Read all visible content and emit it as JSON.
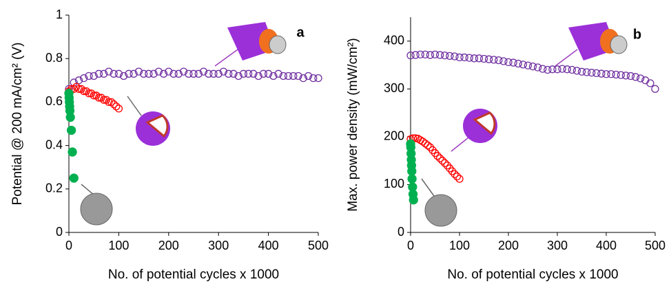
{
  "chart_data": [
    {
      "type": "scatter",
      "title": "a",
      "x_label": "No. of potential cycles x 1000",
      "y_label": "Potential @ 200 mA/cm² (V)",
      "xlim": [
        0,
        500
      ],
      "xticks": [
        0,
        100,
        200,
        300,
        400,
        500
      ],
      "ylim": [
        0,
        1
      ],
      "yticks": [
        0,
        0.2,
        0.4,
        0.6,
        0.8,
        1
      ],
      "series": [
        {
          "color": "#7030a0",
          "marker": "open",
          "x": [
            0,
            10,
            20,
            30,
            40,
            50,
            60,
            70,
            80,
            90,
            100,
            110,
            120,
            130,
            140,
            150,
            160,
            170,
            180,
            190,
            200,
            210,
            220,
            230,
            240,
            250,
            260,
            270,
            280,
            290,
            300,
            310,
            320,
            330,
            340,
            350,
            360,
            370,
            380,
            390,
            400,
            410,
            420,
            430,
            440,
            450,
            460,
            470,
            480,
            490,
            500
          ],
          "values": [
            0.66,
            0.69,
            0.7,
            0.71,
            0.72,
            0.72,
            0.73,
            0.73,
            0.74,
            0.73,
            0.73,
            0.72,
            0.73,
            0.73,
            0.74,
            0.73,
            0.73,
            0.73,
            0.74,
            0.73,
            0.74,
            0.73,
            0.73,
            0.74,
            0.73,
            0.73,
            0.73,
            0.74,
            0.73,
            0.73,
            0.73,
            0.74,
            0.73,
            0.73,
            0.72,
            0.73,
            0.73,
            0.73,
            0.72,
            0.73,
            0.73,
            0.72,
            0.73,
            0.72,
            0.72,
            0.72,
            0.72,
            0.71,
            0.72,
            0.71,
            0.71
          ]
        },
        {
          "color": "#ff0000",
          "marker": "open",
          "x": [
            0,
            5,
            10,
            15,
            20,
            25,
            30,
            35,
            40,
            45,
            50,
            55,
            60,
            65,
            70,
            75,
            80,
            85,
            90,
            95,
            100
          ],
          "values": [
            0.65,
            0.66,
            0.66,
            0.67,
            0.66,
            0.66,
            0.65,
            0.65,
            0.64,
            0.64,
            0.63,
            0.63,
            0.62,
            0.62,
            0.61,
            0.61,
            0.6,
            0.6,
            0.59,
            0.58,
            0.57
          ]
        },
        {
          "color": "#00b050",
          "marker": "filled",
          "x": [
            0,
            0.5,
            1,
            1.5,
            2,
            3,
            5,
            7,
            10
          ],
          "values": [
            0.64,
            0.62,
            0.6,
            0.58,
            0.56,
            0.53,
            0.47,
            0.37,
            0.25
          ]
        }
      ]
    },
    {
      "type": "scatter",
      "title": "b",
      "x_label": "No. of potential cycles x 1000",
      "y_label": "Max. power density (mW/cm²)",
      "xlim": [
        0,
        500
      ],
      "xticks": [
        0,
        100,
        200,
        300,
        400,
        500
      ],
      "ylim": [
        0,
        450
      ],
      "yticks": [
        0,
        100,
        200,
        300,
        400
      ],
      "series": [
        {
          "color": "#7030a0",
          "marker": "open",
          "x": [
            0,
            10,
            20,
            30,
            40,
            50,
            60,
            70,
            80,
            90,
            100,
            110,
            120,
            130,
            140,
            150,
            160,
            170,
            180,
            190,
            200,
            210,
            220,
            230,
            240,
            250,
            260,
            270,
            280,
            290,
            300,
            310,
            320,
            330,
            340,
            350,
            360,
            370,
            380,
            390,
            400,
            410,
            420,
            430,
            440,
            450,
            460,
            470,
            480,
            490,
            500
          ],
          "values": [
            370,
            371,
            372,
            372,
            371,
            372,
            371,
            370,
            369,
            368,
            366,
            366,
            365,
            364,
            364,
            363,
            362,
            361,
            360,
            358,
            356,
            355,
            353,
            351,
            349,
            347,
            345,
            342,
            340,
            341,
            341,
            342,
            341,
            340,
            338,
            336,
            335,
            334,
            333,
            332,
            331,
            331,
            330,
            329,
            328,
            327,
            325,
            322,
            318,
            312,
            300
          ]
        },
        {
          "color": "#ff0000",
          "marker": "open",
          "x": [
            0,
            5,
            10,
            15,
            20,
            25,
            30,
            35,
            40,
            45,
            50,
            55,
            60,
            65,
            70,
            75,
            80,
            85,
            90,
            95,
            100
          ],
          "values": [
            195,
            197,
            197,
            196,
            193,
            190,
            186,
            182,
            178,
            172,
            166,
            160,
            155,
            150,
            145,
            140,
            134,
            128,
            122,
            117,
            112
          ]
        },
        {
          "color": "#00b050",
          "marker": "filled",
          "x": [
            0,
            0.5,
            1,
            1.5,
            2,
            2.5,
            3,
            4,
            5,
            6
          ],
          "values": [
            185,
            178,
            165,
            152,
            140,
            128,
            112,
            95,
            80,
            68
          ]
        }
      ]
    }
  ]
}
